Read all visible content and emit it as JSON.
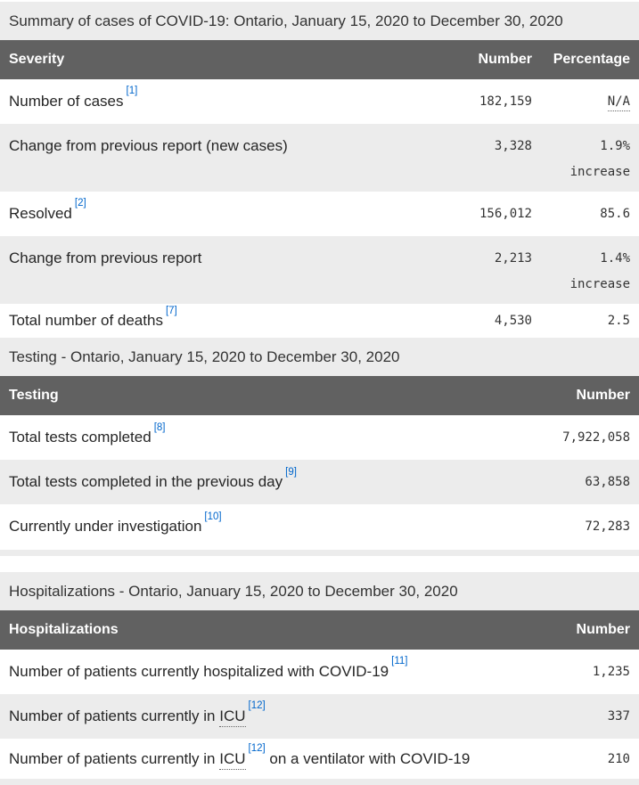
{
  "theme": {
    "header_bg": "#616161",
    "header_text": "#ffffff",
    "stripe_bg": "#ececec",
    "link_color": "#0066cc",
    "body_text": "#262626"
  },
  "tables": [
    {
      "caption": "Summary of cases of COVID-19: Ontario, January 15, 2020 to December 30, 2020",
      "columns": [
        "Severity",
        "Number",
        "Percentage"
      ],
      "rows": [
        {
          "label": "Number of cases",
          "footnote": "[1]",
          "number": "182,159",
          "percentage": "N/A",
          "percentage_dotted": true
        },
        {
          "label": "Change from previous report (new cases)",
          "number": "3,328",
          "percentage": "1.9%",
          "percentage_note": "increase"
        },
        {
          "label": "Resolved",
          "footnote": "[2]",
          "number": "156,012",
          "percentage": "85.6"
        },
        {
          "label": "Change from previous report",
          "number": "2,213",
          "percentage": "1.4%",
          "percentage_note": "increase"
        },
        {
          "label": "Total number of deaths",
          "footnote": "[7]",
          "number": "4,530",
          "percentage": "2.5"
        }
      ]
    },
    {
      "caption": "Testing - Ontario, January 15, 2020 to December 30, 2020",
      "columns": [
        "Testing",
        "Number"
      ],
      "rows": [
        {
          "label": "Total tests completed",
          "footnote": "[8]",
          "number": "7,922,058"
        },
        {
          "label": "Total tests completed in the previous day",
          "footnote": "[9]",
          "number": "63,858"
        },
        {
          "label": "Currently under investigation",
          "footnote": "[10]",
          "number": "72,283"
        }
      ]
    },
    {
      "caption": "Hospitalizations - Ontario, January 15, 2020 to December 30, 2020",
      "columns": [
        "Hospitalizations",
        "Number"
      ],
      "rows": [
        {
          "label": "Number of patients currently hospitalized with COVID-19",
          "footnote": "[11]",
          "number": "1,235"
        },
        {
          "label": "Number of patients currently in",
          "abbr": "ICU",
          "footnote": "[12]",
          "number": "337"
        },
        {
          "label": "Number of patients currently in",
          "abbr": "ICU",
          "footnote": "[12]",
          "label_suffix": "on a ventilator with COVID-19",
          "number": "210"
        }
      ]
    }
  ]
}
